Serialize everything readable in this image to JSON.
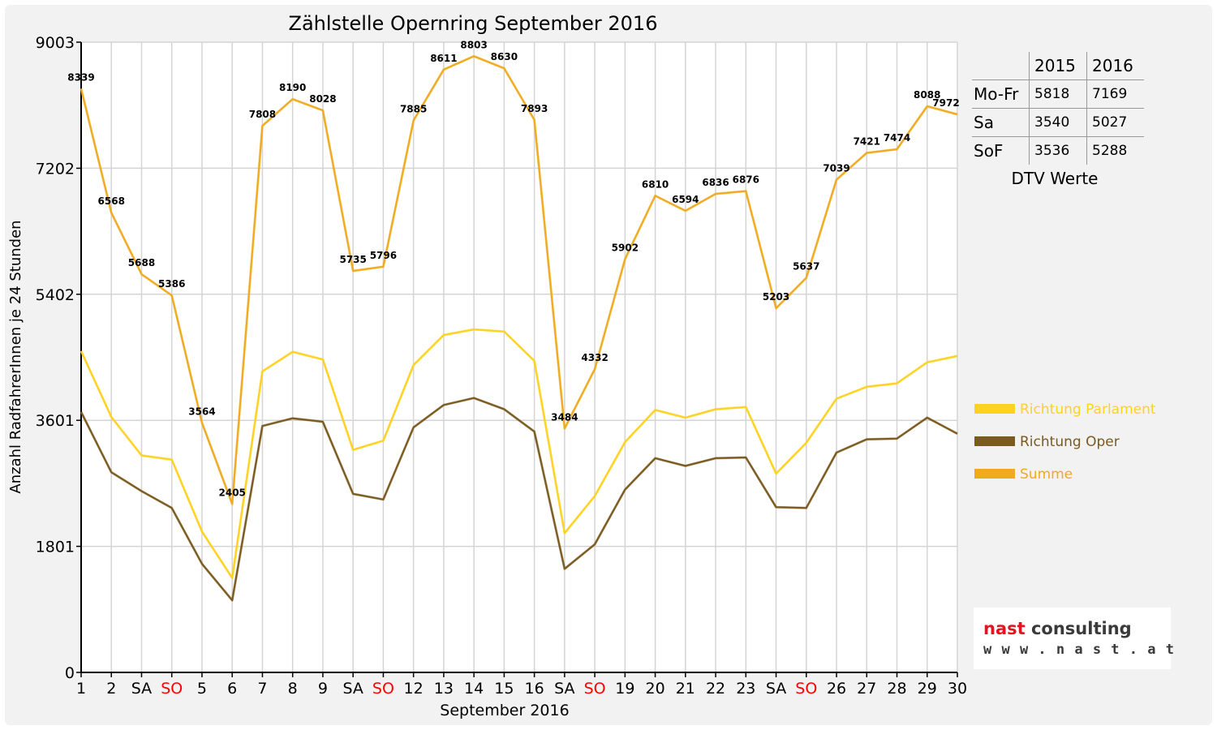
{
  "chart_data": {
    "type": "line",
    "title": "Zählstelle Opernring September 2016",
    "xlabel": "September 2016",
    "ylabel": "Anzahl RadfahrerInnen je 24 Stunden",
    "ylim": [
      0,
      9003
    ],
    "yticks": [
      0,
      1801,
      3601,
      5402,
      7202,
      9003
    ],
    "categories": [
      "1",
      "2",
      "SA",
      "SO",
      "5",
      "6",
      "7",
      "8",
      "9",
      "SA",
      "SO",
      "12",
      "13",
      "14",
      "15",
      "16",
      "SA",
      "SO",
      "19",
      "20",
      "21",
      "22",
      "23",
      "SA",
      "SO",
      "26",
      "27",
      "28",
      "29",
      "30"
    ],
    "red_categories": [
      "SO"
    ],
    "grid": true,
    "legend_position": "right",
    "series": [
      {
        "name": "Richtung Parlament",
        "color": "#ffd21f",
        "values": [
          4590,
          3650,
          3100,
          3040,
          2010,
          1350,
          4300,
          4580,
          4470,
          3180,
          3310,
          4390,
          4820,
          4900,
          4870,
          4450,
          1990,
          2520,
          3290,
          3750,
          3640,
          3760,
          3790,
          2840,
          3280,
          3910,
          4080,
          4130,
          4430,
          4520
        ]
      },
      {
        "name": "Richtung Oper",
        "color": "#7a5a1e",
        "values": [
          3720,
          2860,
          2590,
          2350,
          1550,
          1030,
          3520,
          3630,
          3580,
          2550,
          2470,
          3500,
          3820,
          3920,
          3760,
          3440,
          1480,
          1830,
          2610,
          3060,
          2950,
          3060,
          3070,
          2360,
          2350,
          3140,
          3330,
          3340,
          3640,
          3410
        ]
      },
      {
        "name": "Summe",
        "color": "#f0aa1e",
        "values": [
          8339,
          6568,
          5688,
          5386,
          3564,
          2405,
          7808,
          8190,
          8028,
          5735,
          5796,
          7885,
          8611,
          8803,
          8630,
          7893,
          3484,
          4332,
          5902,
          6810,
          6594,
          6836,
          6876,
          5203,
          5637,
          7039,
          7421,
          7474,
          8088,
          7972
        ]
      }
    ],
    "data_labels": {
      "series": "Summe",
      "values": [
        "8339",
        "6568",
        "5688",
        "5386",
        "3564",
        "2405",
        "7808",
        "8190",
        "8028",
        "5735",
        "5796",
        "7885",
        "8611",
        "8803",
        "8630",
        "7893",
        "3484",
        "4332",
        "5902",
        "6810",
        "6594",
        "6836",
        "6876",
        "5203",
        "5637",
        "7039",
        "7421",
        "7474",
        "8088",
        "7972"
      ]
    }
  },
  "dtv_table": {
    "headers": [
      "",
      "2015",
      "2016"
    ],
    "rows": [
      {
        "label": "Mo-Fr",
        "v2015": "5818",
        "v2016": "7169"
      },
      {
        "label": "Sa",
        "v2015": "3540",
        "v2016": "5027"
      },
      {
        "label": "SoF",
        "v2015": "3536",
        "v2016": "5288"
      }
    ],
    "caption": "DTV Werte"
  },
  "logo": {
    "brand_red": "nast",
    "brand_dark": " consulting",
    "url": "w w w . n a s t . a t",
    "red_color": "#e0161e",
    "dark_color": "#3a3a3a"
  }
}
